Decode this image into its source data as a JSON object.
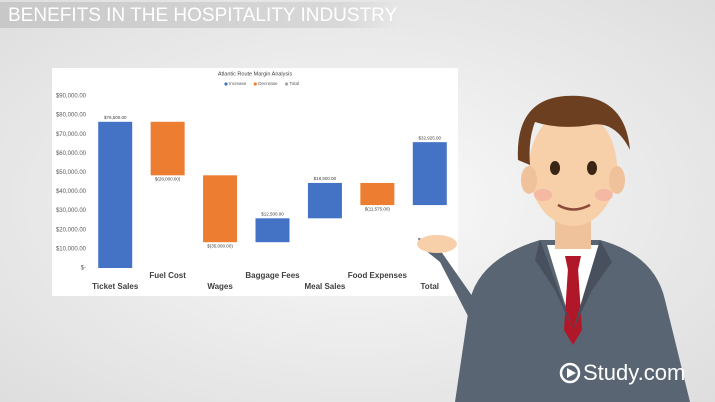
{
  "header": {
    "title": "BENEFITS IN THE HOSPITALITY INDUSTRY"
  },
  "watermark": "Study.com",
  "chart_data": {
    "type": "waterfall",
    "title": "Atlantic Route Margin Analysis",
    "categories": [
      "Ticket Sales",
      "Fuel Cost",
      "Wages",
      "Baggage Fees",
      "Meal Sales",
      "Food Expenses",
      "Total"
    ],
    "values": [
      76500,
      -28000,
      -35000,
      12500,
      18500,
      -11575,
      32925
    ],
    "value_labels": [
      "$76,500.00",
      "$(28,000.00)",
      "$(35,000.00)",
      "$12,500.00",
      "$18,500.00",
      "$(11,575.00)",
      "$32,925.00"
    ],
    "legend": [
      {
        "name": "Increase",
        "color": "#4472c4"
      },
      {
        "name": "Decrease",
        "color": "#ed7d31"
      },
      {
        "name": "Total",
        "color": "#a5a5a5"
      }
    ],
    "ylim": [
      0,
      90000
    ],
    "yticks": [
      {
        "value": 0,
        "label": "$-"
      },
      {
        "value": 10000,
        "label": "$10,000.00"
      },
      {
        "value": 20000,
        "label": "$20,000.00"
      },
      {
        "value": 30000,
        "label": "$30,000.00"
      },
      {
        "value": 40000,
        "label": "$40,000.00"
      },
      {
        "value": 50000,
        "label": "$50,000.00"
      },
      {
        "value": 60000,
        "label": "$60,000.00"
      },
      {
        "value": 70000,
        "label": "$70,000.00"
      },
      {
        "value": 80000,
        "label": "$80,000.00"
      },
      {
        "value": 90000,
        "label": "$90,000.00"
      }
    ],
    "grid": false
  }
}
